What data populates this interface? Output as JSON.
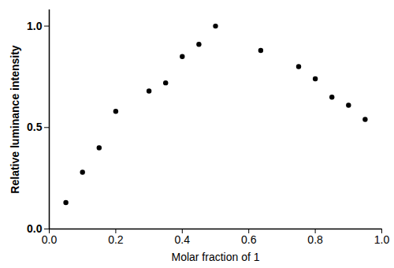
{
  "chart_data": {
    "type": "scatter",
    "x_label": "Molar fraction of 1",
    "y_label": "Relative luminance intensity",
    "x": [
      0.05,
      0.1,
      0.15,
      0.2,
      0.3,
      0.35,
      0.4,
      0.45,
      0.5,
      0.636,
      0.75,
      0.8,
      0.85,
      0.9,
      0.95
    ],
    "values": [
      0.13,
      0.28,
      0.4,
      0.58,
      0.68,
      0.72,
      0.85,
      0.91,
      1.0,
      0.88,
      0.8,
      0.74,
      0.65,
      0.61,
      0.54
    ],
    "color": "#000000",
    "marker": "circle",
    "xlim": [
      0,
      1.0
    ],
    "xticks": [
      {
        "value": 0,
        "label": "0.0"
      },
      0.2,
      0.4,
      0.6,
      0.8,
      {
        "value": 1,
        "label": "1.0"
      }
    ],
    "ylim": [
      0,
      1.08
    ],
    "yticks": [
      {
        "value": 0,
        "label": "0.0"
      },
      0.5,
      {
        "value": 1,
        "label": "1.0"
      }
    ],
    "grid": false
  }
}
